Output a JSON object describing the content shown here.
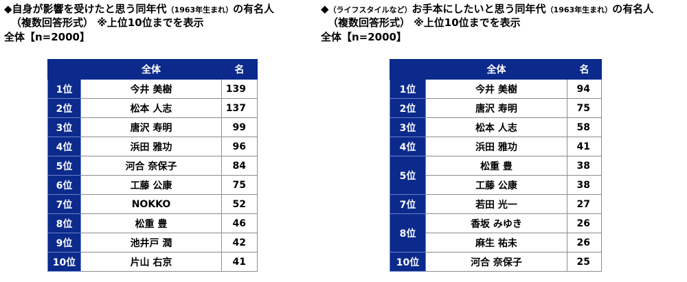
{
  "left": {
    "title_main": "◆自身が影響を受けたと思う同年代",
    "title_paren": "（1963年生まれ）",
    "title_tail": "の有名人",
    "subtitle": "（複数回答形式）  ※上位10位までを表示",
    "base": "全体【n=2000】",
    "columns": {
      "name": "全体",
      "count": "名"
    },
    "rows": [
      {
        "rank": "1位",
        "name": "今井 美樹",
        "count": "139"
      },
      {
        "rank": "2位",
        "name": "松本 人志",
        "count": "137"
      },
      {
        "rank": "3位",
        "name": "唐沢 寿明",
        "count": "99"
      },
      {
        "rank": "4位",
        "name": "浜田 雅功",
        "count": "96"
      },
      {
        "rank": "5位",
        "name": "河合 奈保子",
        "count": "84"
      },
      {
        "rank": "6位",
        "name": "工藤 公康",
        "count": "75"
      },
      {
        "rank": "7位",
        "name": "NOKKO",
        "count": "52"
      },
      {
        "rank": "8位",
        "name": "松重 豊",
        "count": "46"
      },
      {
        "rank": "9位",
        "name": "池井戸 潤",
        "count": "42"
      },
      {
        "rank": "10位",
        "name": "片山 右京",
        "count": "41"
      }
    ]
  },
  "right": {
    "title_lead": "◆",
    "title_paren1": "（ライフスタイルなど）",
    "title_main": "お手本にしたいと思う同年代",
    "title_paren2": "（1963年生まれ）",
    "title_tail": "の有名人",
    "subtitle": "（複数回答形式）  ※上位10位までを表示",
    "base": "全体【n=2000】",
    "columns": {
      "name": "全体",
      "count": "名"
    },
    "rows": [
      {
        "rank": "1位",
        "name": "今井 美樹",
        "count": "94"
      },
      {
        "rank": "2位",
        "name": "唐沢 寿明",
        "count": "75"
      },
      {
        "rank": "3位",
        "name": "松本 人志",
        "count": "58"
      },
      {
        "rank": "4位",
        "name": "浜田 雅功",
        "count": "41"
      },
      {
        "rank": "5位",
        "name": "松重 豊",
        "count": "38"
      },
      {
        "rank": "",
        "name": "工藤 公康",
        "count": "38"
      },
      {
        "rank": "7位",
        "name": "若田 光一",
        "count": "27"
      },
      {
        "rank": "8位",
        "name": "香坂 みゆき",
        "count": "26"
      },
      {
        "rank": "",
        "name": "麻生 祐未",
        "count": "26"
      },
      {
        "rank": "10位",
        "name": "河合 奈保子",
        "count": "25"
      }
    ]
  }
}
